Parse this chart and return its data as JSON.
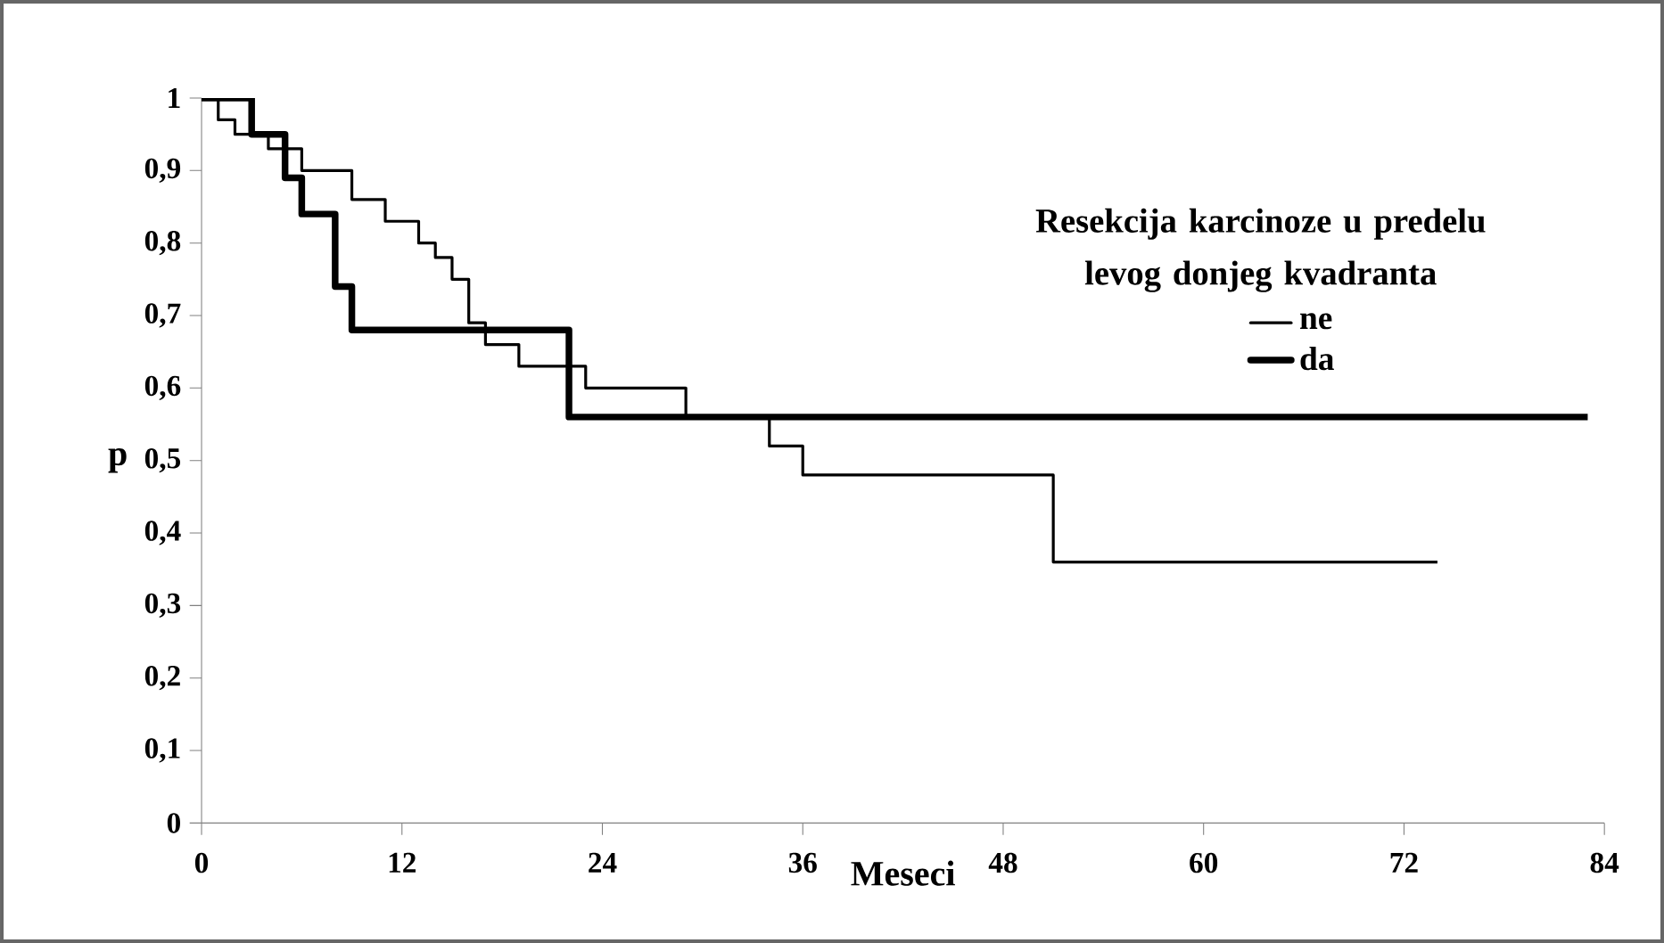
{
  "chart_data": {
    "type": "step",
    "xlabel": "Meseci",
    "ylabel": "p",
    "legend_title": "Resekcija karcinoze u predelu levog donjeg kvadranta",
    "x": [
      0,
      1,
      2,
      4,
      6,
      9,
      11,
      13,
      14,
      15,
      16,
      17,
      19,
      23,
      29,
      34,
      36,
      51,
      74
    ],
    "series": [
      {
        "name": "ne",
        "color": "#000000",
        "values": [
          1,
          0.97,
          0.95,
          0.93,
          0.9,
          0.86,
          0.83,
          0.8,
          0.78,
          0.75,
          0.69,
          0.66,
          0.63,
          0.6,
          0.56,
          0.52,
          0.48,
          0.36,
          0.36
        ]
      },
      {
        "name": "da",
        "color": "#000000",
        "x": [
          0,
          3,
          5,
          6,
          8,
          9,
          22,
          83
        ],
        "values": [
          1,
          0.95,
          0.89,
          0.84,
          0.74,
          0.68,
          0.56,
          0.56
        ]
      }
    ],
    "xlim": [
      0,
      84
    ],
    "ylim": [
      0,
      1
    ],
    "xticks": [
      0,
      12,
      24,
      36,
      48,
      60,
      72,
      84
    ],
    "yticks": [
      0,
      {
        "value": 0.1,
        "label": "0,1"
      },
      {
        "value": 0.2,
        "label": "0,2"
      },
      {
        "value": 0.3,
        "label": "0,3"
      },
      {
        "value": 0.4,
        "label": "0,4"
      },
      {
        "value": 0.5,
        "label": "0,5"
      },
      {
        "value": 0.6,
        "label": "0,6"
      },
      {
        "value": 0.7,
        "label": "0,7"
      },
      {
        "value": 0.8,
        "label": "0,8"
      },
      {
        "value": 0.9,
        "label": "0,9"
      },
      1
    ],
    "legend": "top right",
    "grid": false,
    "marker": "none",
    "line_style": "solid"
  }
}
